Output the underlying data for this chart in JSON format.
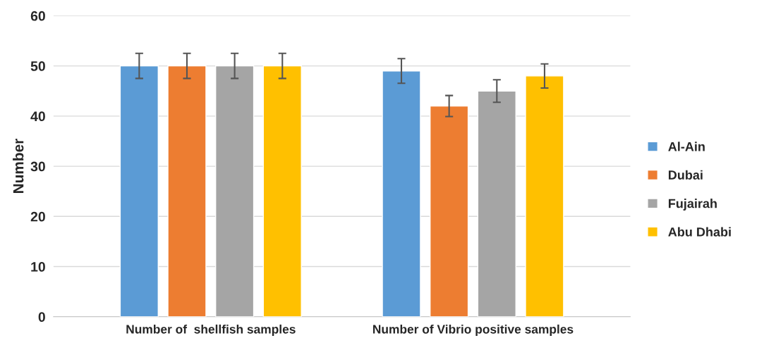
{
  "chart_data": {
    "type": "bar",
    "ylabel": "Number",
    "categories": [
      "Number of  shellfish samples",
      "Number of Vibrio positive samples"
    ],
    "series": [
      {
        "name": "Al-Ain",
        "color": "#5b9bd5",
        "values": [
          50,
          49
        ],
        "errors": [
          2.5,
          2.45
        ]
      },
      {
        "name": "Dubai",
        "color": "#ed7d31",
        "values": [
          50,
          42
        ],
        "errors": [
          2.5,
          2.1
        ]
      },
      {
        "name": "Fujairah",
        "color": "#a5a5a5",
        "values": [
          50,
          45
        ],
        "errors": [
          2.5,
          2.25
        ]
      },
      {
        "name": "Abu Dhabi",
        "color": "#ffc000",
        "values": [
          50,
          48
        ],
        "errors": [
          2.5,
          2.4
        ]
      }
    ],
    "ylim": [
      0,
      60
    ],
    "yticks": [
      0,
      10,
      20,
      30,
      40,
      50,
      60
    ],
    "grid": "y",
    "legend": "right"
  }
}
